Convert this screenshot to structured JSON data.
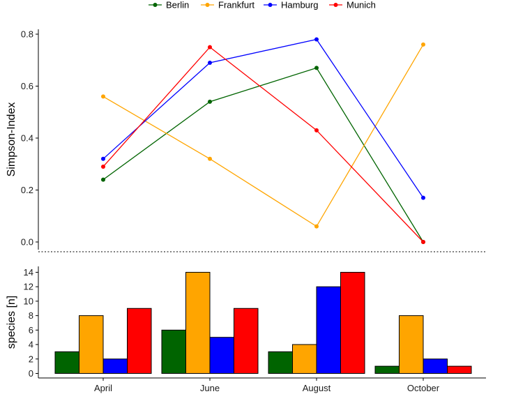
{
  "chart_data": [
    {
      "type": "line",
      "title": "",
      "xlabel": "",
      "ylabel": "Simpson-Index",
      "categories": [
        "April",
        "June",
        "August",
        "October"
      ],
      "ylim": [
        0,
        0.8
      ],
      "yticks": [
        "0.0",
        "0.2",
        "0.4",
        "0.6",
        "0.8"
      ],
      "legend_position": "top",
      "series": [
        {
          "name": "Berlin",
          "color": "#006400",
          "values": [
            0.24,
            0.54,
            0.67,
            0.0
          ]
        },
        {
          "name": "Frankfurt",
          "color": "#FFA500",
          "values": [
            0.56,
            0.32,
            0.06,
            0.76
          ]
        },
        {
          "name": "Hamburg",
          "color": "#0000FF",
          "values": [
            0.32,
            0.69,
            0.78,
            0.17
          ]
        },
        {
          "name": "Munich",
          "color": "#FF0000",
          "values": [
            0.29,
            0.75,
            0.43,
            0.0
          ]
        }
      ]
    },
    {
      "type": "bar",
      "title": "",
      "xlabel": "",
      "ylabel": "species [n]",
      "categories": [
        "April",
        "June",
        "August",
        "October"
      ],
      "ylim": [
        0,
        14
      ],
      "yticks": [
        "0",
        "2",
        "4",
        "6",
        "8",
        "10",
        "12",
        "14"
      ],
      "series": [
        {
          "name": "Berlin",
          "color": "#006400",
          "values": [
            3,
            6,
            3,
            1
          ]
        },
        {
          "name": "Frankfurt",
          "color": "#FFA500",
          "values": [
            8,
            14,
            4,
            8
          ]
        },
        {
          "name": "Hamburg",
          "color": "#0000FF",
          "values": [
            2,
            5,
            12,
            2
          ]
        },
        {
          "name": "Munich",
          "color": "#FF0000",
          "values": [
            9,
            9,
            14,
            1
          ]
        }
      ]
    }
  ]
}
